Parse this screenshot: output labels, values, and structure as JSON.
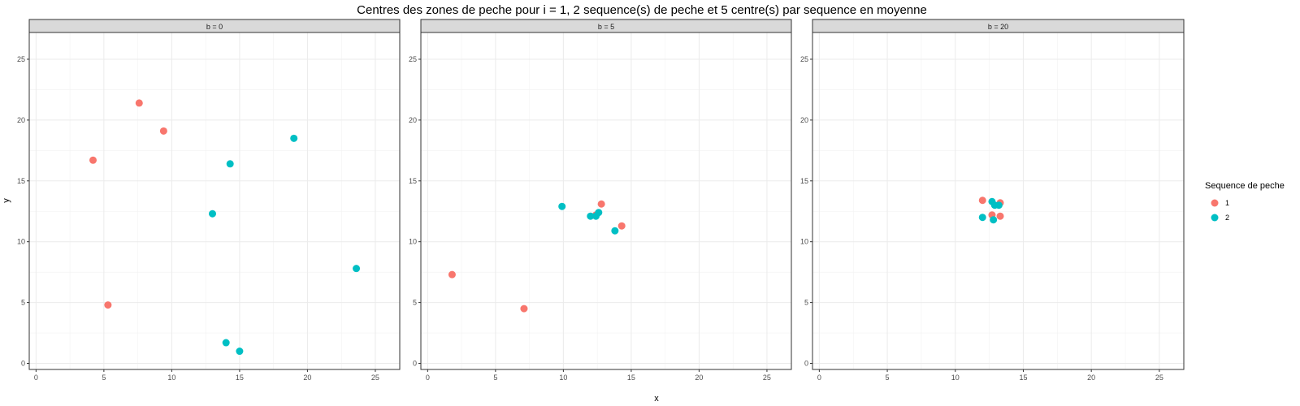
{
  "chart_data": {
    "type": "scatter",
    "title": "Centres des zones de peche pour i = 1, 2 sequence(s) de peche et 5 centre(s) par sequence en moyenne",
    "xlabel": "x",
    "ylabel": "y",
    "xlim": [
      -0.5,
      26.8
    ],
    "ylim": [
      -0.5,
      27.2
    ],
    "x_ticks": [
      0,
      5,
      10,
      15,
      20,
      25
    ],
    "y_ticks": [
      0,
      5,
      10,
      15,
      20,
      25
    ],
    "grid": true,
    "legend": {
      "title": "Sequence de peche",
      "position": "right",
      "entries": [
        {
          "label": "1",
          "color": "#F8766D"
        },
        {
          "label": "2",
          "color": "#00BFC4"
        }
      ]
    },
    "facets": [
      {
        "label": "b = 0",
        "series": [
          {
            "name": "1",
            "color": "#F8766D",
            "points": [
              [
                4.2,
                16.7
              ],
              [
                7.6,
                21.4
              ],
              [
                9.4,
                19.1
              ],
              [
                5.3,
                4.8
              ]
            ]
          },
          {
            "name": "2",
            "color": "#00BFC4",
            "points": [
              [
                14.3,
                16.4
              ],
              [
                19.0,
                18.5
              ],
              [
                13.0,
                12.3
              ],
              [
                23.6,
                7.8
              ],
              [
                14.0,
                1.7
              ],
              [
                15.0,
                1.0
              ]
            ]
          }
        ]
      },
      {
        "label": "b = 5",
        "series": [
          {
            "name": "1",
            "color": "#F8766D",
            "points": [
              [
                1.8,
                7.3
              ],
              [
                7.1,
                4.5
              ],
              [
                12.8,
                13.1
              ],
              [
                14.3,
                11.3
              ],
              [
                12.4,
                12.2
              ]
            ]
          },
          {
            "name": "2",
            "color": "#00BFC4",
            "points": [
              [
                9.9,
                12.9
              ],
              [
                12.0,
                12.1
              ],
              [
                12.4,
                12.1
              ],
              [
                12.6,
                12.4
              ],
              [
                13.8,
                10.9
              ]
            ]
          }
        ]
      },
      {
        "label": "b = 20",
        "series": [
          {
            "name": "1",
            "color": "#F8766D",
            "points": [
              [
                12.0,
                13.4
              ],
              [
                13.3,
                13.2
              ],
              [
                12.7,
                12.2
              ],
              [
                13.3,
                12.1
              ]
            ]
          },
          {
            "name": "2",
            "color": "#00BFC4",
            "points": [
              [
                12.7,
                13.3
              ],
              [
                12.9,
                13.0
              ],
              [
                13.2,
                13.0
              ],
              [
                12.0,
                12.0
              ],
              [
                12.8,
                11.8
              ]
            ]
          }
        ]
      }
    ]
  }
}
